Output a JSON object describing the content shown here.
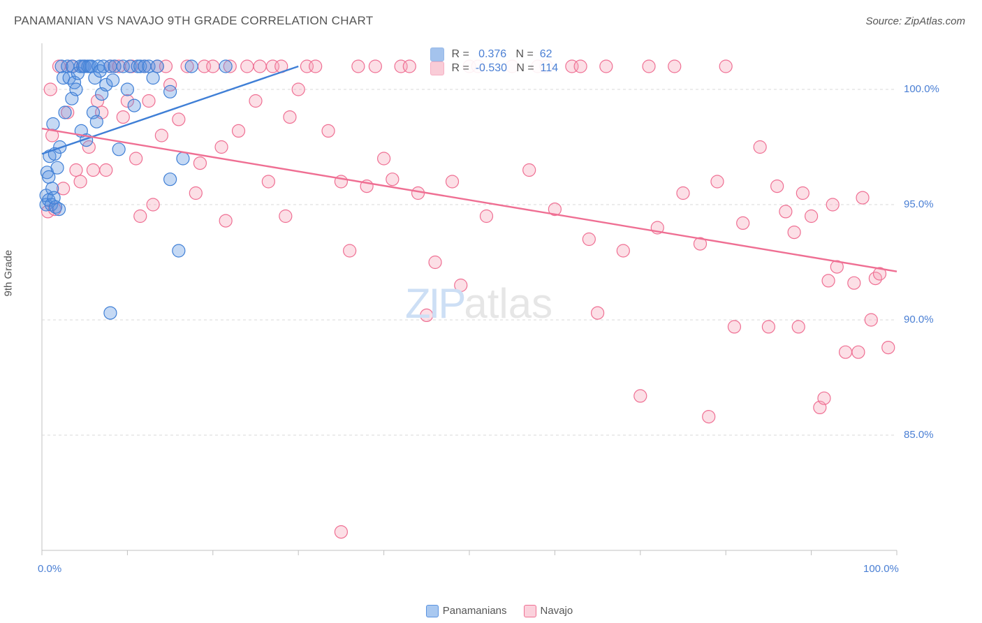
{
  "title": "PANAMANIAN VS NAVAJO 9TH GRADE CORRELATION CHART",
  "source": "Source: ZipAtlas.com",
  "ylabel": "9th Grade",
  "watermark": {
    "part1": "ZIP",
    "part2": "atlas"
  },
  "chart": {
    "type": "scatter",
    "background_color": "#ffffff",
    "grid_color": "#d9d9d9",
    "axis_color": "#c0c0c0",
    "text_color": "#555555",
    "value_color": "#4a7fd4",
    "xlim": [
      0,
      100
    ],
    "ylim": [
      80,
      102
    ],
    "y_ticks": [
      85.0,
      90.0,
      95.0,
      100.0
    ],
    "y_tick_labels": [
      "85.0%",
      "90.0%",
      "95.0%",
      "100.0%"
    ],
    "x_ticks": [
      0,
      10,
      20,
      30,
      40,
      50,
      60,
      70,
      80,
      90,
      100
    ],
    "x_tick_labels_shown": {
      "0": "0.0%",
      "100": "100.0%"
    },
    "marker_radius": 9,
    "marker_fill_opacity": 0.35,
    "marker_stroke_width": 1.2,
    "trend_line_width": 2.4,
    "series": [
      {
        "name": "Panamanians",
        "color": "#5a93e0",
        "stroke": "#3f7fd6",
        "R": 0.376,
        "N": 62,
        "trend": {
          "x1": 0,
          "y1": 97.2,
          "x2": 30,
          "y2": 101.0
        },
        "points": [
          [
            0.5,
            95.0
          ],
          [
            0.5,
            95.4
          ],
          [
            0.6,
            96.4
          ],
          [
            0.8,
            95.2
          ],
          [
            0.8,
            96.2
          ],
          [
            0.9,
            97.1
          ],
          [
            1.1,
            95.0
          ],
          [
            1.2,
            95.7
          ],
          [
            1.3,
            98.5
          ],
          [
            1.4,
            95.3
          ],
          [
            1.5,
            97.2
          ],
          [
            1.6,
            94.9
          ],
          [
            1.8,
            96.6
          ],
          [
            2.0,
            94.8
          ],
          [
            2.1,
            97.5
          ],
          [
            2.3,
            101.0
          ],
          [
            2.5,
            100.5
          ],
          [
            2.7,
            99.0
          ],
          [
            3.0,
            101.0
          ],
          [
            3.2,
            100.5
          ],
          [
            3.5,
            99.6
          ],
          [
            3.6,
            101.0
          ],
          [
            3.8,
            100.3
          ],
          [
            4.0,
            100.0
          ],
          [
            4.2,
            100.7
          ],
          [
            4.5,
            101.0
          ],
          [
            4.6,
            98.2
          ],
          [
            4.8,
            101.0
          ],
          [
            5.0,
            101.0
          ],
          [
            5.2,
            97.8
          ],
          [
            5.4,
            101.0
          ],
          [
            5.6,
            101.0
          ],
          [
            5.8,
            101.0
          ],
          [
            6.0,
            99.0
          ],
          [
            6.2,
            100.5
          ],
          [
            6.4,
            98.6
          ],
          [
            6.6,
            101.0
          ],
          [
            6.8,
            100.8
          ],
          [
            7.0,
            99.8
          ],
          [
            7.2,
            101.0
          ],
          [
            7.5,
            100.2
          ],
          [
            8.0,
            101.0
          ],
          [
            8.3,
            100.4
          ],
          [
            8.5,
            101.0
          ],
          [
            9.0,
            97.4
          ],
          [
            9.5,
            101.0
          ],
          [
            10.0,
            100.0
          ],
          [
            10.3,
            101.0
          ],
          [
            10.8,
            99.3
          ],
          [
            11.2,
            101.0
          ],
          [
            11.5,
            101.0
          ],
          [
            12.0,
            101.0
          ],
          [
            12.5,
            101.0
          ],
          [
            13.0,
            100.5
          ],
          [
            13.5,
            101.0
          ],
          [
            15.0,
            99.9
          ],
          [
            15.0,
            96.1
          ],
          [
            16.0,
            93.0
          ],
          [
            16.5,
            97.0
          ],
          [
            17.5,
            101.0
          ],
          [
            21.5,
            101.0
          ],
          [
            8.0,
            90.3
          ]
        ]
      },
      {
        "name": "Navajo",
        "color": "#f5a3b8",
        "stroke": "#ef6f93",
        "R": -0.53,
        "N": 114,
        "trend": {
          "x1": 0,
          "y1": 98.3,
          "x2": 100,
          "y2": 92.1
        },
        "points": [
          [
            0.7,
            94.7
          ],
          [
            1.0,
            100.0
          ],
          [
            1.2,
            98.0
          ],
          [
            1.5,
            94.8
          ],
          [
            2.0,
            101.0
          ],
          [
            2.5,
            95.7
          ],
          [
            3.0,
            99.0
          ],
          [
            3.5,
            101.0
          ],
          [
            4.0,
            96.5
          ],
          [
            4.5,
            96.0
          ],
          [
            5.0,
            101.0
          ],
          [
            5.5,
            97.5
          ],
          [
            6.0,
            96.5
          ],
          [
            6.5,
            99.5
          ],
          [
            7.0,
            99.0
          ],
          [
            7.5,
            96.5
          ],
          [
            8.0,
            101.0
          ],
          [
            8.5,
            101.0
          ],
          [
            9.0,
            101.0
          ],
          [
            9.5,
            98.8
          ],
          [
            10.0,
            99.5
          ],
          [
            10.5,
            101.0
          ],
          [
            11.0,
            97.0
          ],
          [
            11.5,
            94.5
          ],
          [
            12.0,
            101.0
          ],
          [
            12.5,
            99.5
          ],
          [
            13.0,
            95.0
          ],
          [
            13.5,
            101.0
          ],
          [
            14.0,
            98.0
          ],
          [
            14.5,
            101.0
          ],
          [
            15.0,
            100.2
          ],
          [
            16.0,
            98.7
          ],
          [
            17.0,
            101.0
          ],
          [
            18.0,
            95.5
          ],
          [
            18.5,
            96.8
          ],
          [
            19.0,
            101.0
          ],
          [
            20.0,
            101.0
          ],
          [
            21.0,
            97.5
          ],
          [
            21.5,
            94.3
          ],
          [
            22.0,
            101.0
          ],
          [
            23.0,
            98.2
          ],
          [
            24.0,
            101.0
          ],
          [
            25.0,
            99.5
          ],
          [
            25.5,
            101.0
          ],
          [
            26.5,
            96.0
          ],
          [
            27.0,
            101.0
          ],
          [
            28.0,
            101.0
          ],
          [
            28.5,
            94.5
          ],
          [
            29.0,
            98.8
          ],
          [
            30.0,
            100.0
          ],
          [
            31.0,
            101.0
          ],
          [
            32.0,
            101.0
          ],
          [
            33.5,
            98.2
          ],
          [
            35.0,
            96.0
          ],
          [
            36.0,
            93.0
          ],
          [
            37.0,
            101.0
          ],
          [
            38.0,
            95.8
          ],
          [
            39.0,
            101.0
          ],
          [
            40.0,
            97.0
          ],
          [
            41.0,
            96.1
          ],
          [
            42.0,
            101.0
          ],
          [
            43.0,
            101.0
          ],
          [
            44.0,
            95.5
          ],
          [
            45.0,
            90.2
          ],
          [
            46.0,
            92.5
          ],
          [
            48.0,
            96.0
          ],
          [
            49.0,
            91.5
          ],
          [
            50.0,
            101.0
          ],
          [
            51.0,
            101.0
          ],
          [
            52.0,
            94.5
          ],
          [
            55.0,
            101.0
          ],
          [
            57.0,
            96.5
          ],
          [
            58.0,
            101.0
          ],
          [
            59.0,
            101.0
          ],
          [
            60.0,
            94.8
          ],
          [
            62.0,
            101.0
          ],
          [
            63.0,
            101.0
          ],
          [
            64.0,
            93.5
          ],
          [
            65.0,
            90.3
          ],
          [
            66.0,
            101.0
          ],
          [
            68.0,
            93.0
          ],
          [
            70.0,
            86.7
          ],
          [
            71.0,
            101.0
          ],
          [
            72.0,
            94.0
          ],
          [
            74.0,
            101.0
          ],
          [
            75.0,
            95.5
          ],
          [
            77.0,
            93.3
          ],
          [
            78.0,
            85.8
          ],
          [
            79.0,
            96.0
          ],
          [
            80.0,
            101.0
          ],
          [
            81.0,
            89.7
          ],
          [
            82.0,
            94.2
          ],
          [
            84.0,
            97.5
          ],
          [
            85.0,
            89.7
          ],
          [
            86.0,
            95.8
          ],
          [
            87.0,
            94.7
          ],
          [
            88.0,
            93.8
          ],
          [
            88.5,
            89.7
          ],
          [
            89.0,
            95.5
          ],
          [
            90.0,
            94.5
          ],
          [
            91.0,
            86.2
          ],
          [
            91.5,
            86.6
          ],
          [
            92.0,
            91.7
          ],
          [
            92.5,
            95.0
          ],
          [
            93.0,
            92.3
          ],
          [
            94.0,
            88.6
          ],
          [
            95.0,
            91.6
          ],
          [
            95.5,
            88.6
          ],
          [
            96.0,
            95.3
          ],
          [
            97.0,
            90.0
          ],
          [
            97.5,
            91.8
          ],
          [
            98.0,
            92.0
          ],
          [
            99.0,
            88.8
          ],
          [
            35.0,
            80.8
          ]
        ]
      }
    ]
  },
  "bottom_legend": [
    {
      "label": "Panamanians",
      "fill": "#a9c8f0",
      "stroke": "#5a93e0"
    },
    {
      "label": "Navajo",
      "fill": "#fbd1dc",
      "stroke": "#ef6f93"
    }
  ],
  "stats_labels": {
    "R": "R =",
    "N": "N ="
  }
}
